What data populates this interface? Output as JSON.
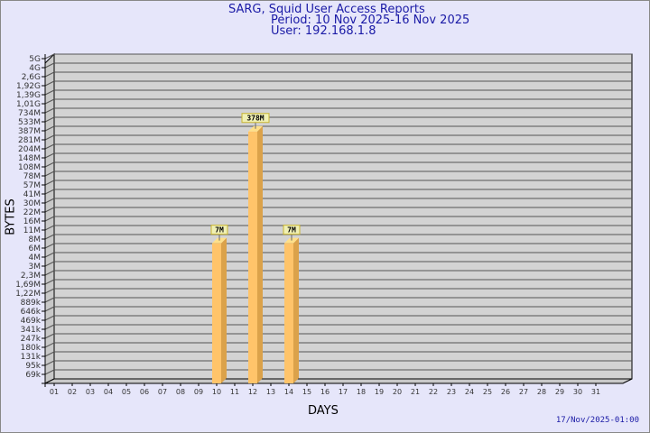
{
  "chart_data": {
    "type": "bar",
    "title": "SARG, Squid User Access Reports",
    "subtitle": [
      "Period: 10 Nov 2025-16 Nov 2025",
      "User: 192.168.1.8"
    ],
    "xlabel": "DAYS",
    "ylabel": "BYTES",
    "y_scale": "log",
    "y_tick_labels": [
      "5G",
      "4G",
      "2,6G",
      "1,92G",
      "1,39G",
      "1,01G",
      "734M",
      "533M",
      "387M",
      "281M",
      "204M",
      "148M",
      "108M",
      "78M",
      "57M",
      "41M",
      "30M",
      "22M",
      "16M",
      "11M",
      "8M",
      "6M",
      "4M",
      "3M",
      "2,3M",
      "1,69M",
      "1,22M",
      "889k",
      "646k",
      "469k",
      "341k",
      "247k",
      "180k",
      "131k",
      "95k",
      "69k"
    ],
    "categories": [
      "01",
      "02",
      "03",
      "04",
      "05",
      "06",
      "07",
      "08",
      "09",
      "10",
      "11",
      "12",
      "13",
      "14",
      "15",
      "16",
      "17",
      "18",
      "19",
      "20",
      "21",
      "22",
      "23",
      "24",
      "25",
      "26",
      "27",
      "28",
      "29",
      "30",
      "31"
    ],
    "bars": [
      {
        "day": "10",
        "value_mb": 7,
        "label": "7M"
      },
      {
        "day": "12",
        "value_mb": 378,
        "label": "378M"
      },
      {
        "day": "14",
        "value_mb": 7,
        "label": "7M"
      }
    ],
    "grid": true,
    "colors": {
      "bar": "#ffc46a",
      "bar_side": "#dba24a",
      "plot": "#d3d3d3",
      "background": "#e6e6fa",
      "title": "#1a1aa6",
      "label_box": "#f0f0b4"
    }
  },
  "footer": {
    "timestamp": "17/Nov/2025-01:00"
  }
}
